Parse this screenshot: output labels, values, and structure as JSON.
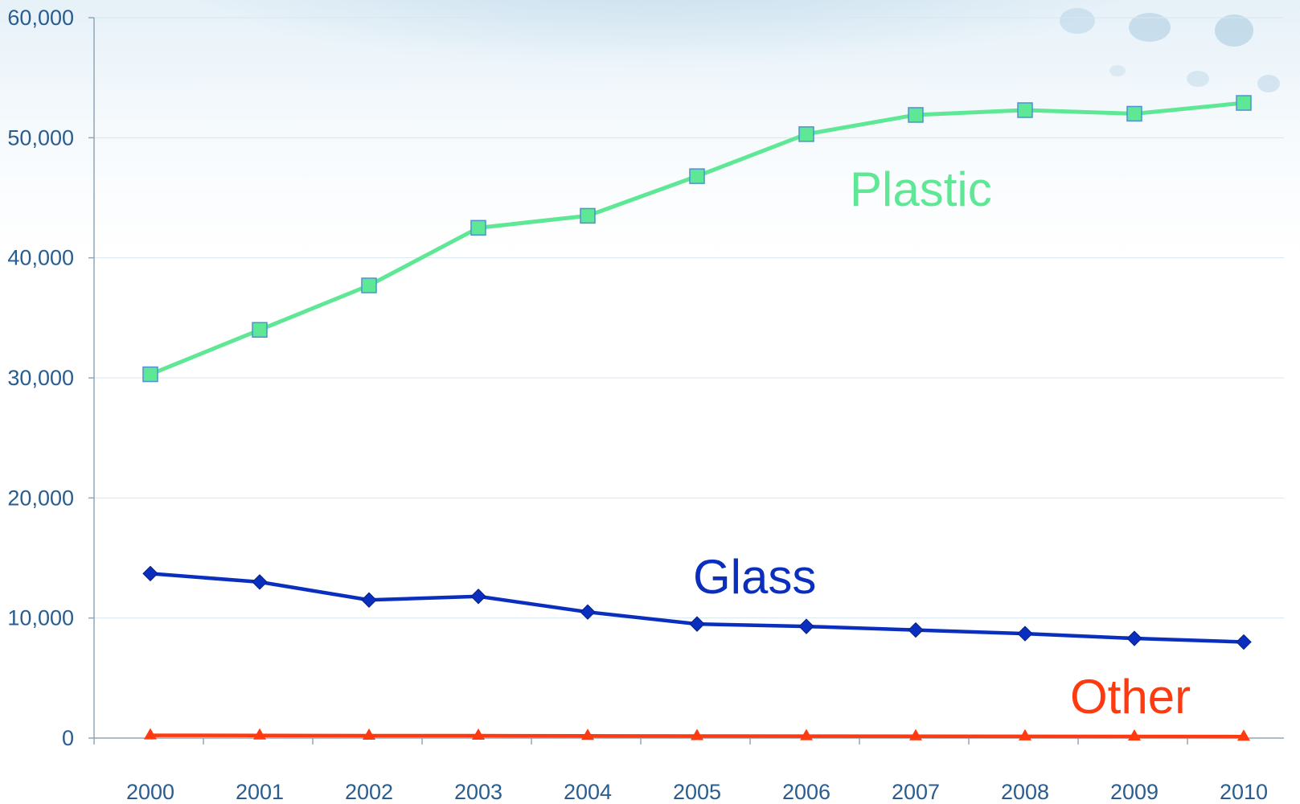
{
  "chart_data": {
    "type": "line",
    "title": "",
    "xlabel": "",
    "ylabel": "",
    "x": [
      "2000",
      "2001",
      "2002",
      "2003",
      "2004",
      "2005",
      "2006",
      "2007",
      "2008",
      "2009",
      "2010"
    ],
    "ylim": [
      0,
      60000
    ],
    "yticks": [
      "0",
      "10,000",
      "20,000",
      "30,000",
      "40,000",
      "50,000",
      "60,000"
    ],
    "ytick_values": [
      0,
      10000,
      20000,
      30000,
      40000,
      50000,
      60000
    ],
    "grid": true,
    "legend": "none; series named by inline labels",
    "series": [
      {
        "name": "Plastic",
        "color": "#5ee896",
        "marker": "square",
        "values": [
          30300,
          34000,
          37700,
          42500,
          43500,
          46800,
          50300,
          51900,
          52300,
          52000,
          52900
        ]
      },
      {
        "name": "Glass",
        "color": "#0a2fbf",
        "marker": "diamond",
        "values": [
          13700,
          13000,
          11500,
          11800,
          10500,
          9500,
          9300,
          9000,
          8700,
          8300,
          8000
        ]
      },
      {
        "name": "Other",
        "color": "#ff3a10",
        "marker": "triangle",
        "values": [
          230,
          220,
          200,
          200,
          180,
          170,
          160,
          150,
          140,
          130,
          120
        ]
      }
    ]
  }
}
